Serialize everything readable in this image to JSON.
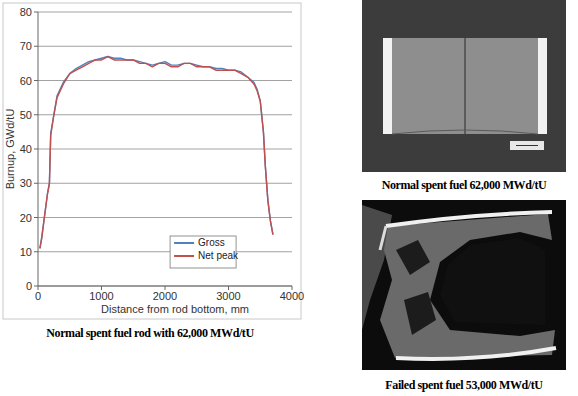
{
  "chart_data": {
    "type": "line",
    "x_label": "Distance from rod bottom, mm",
    "y_label": "Burnup, GWd/tU",
    "caption": "Normal spent fuel rod with 62,000 MWd/tU",
    "x": [
      30,
      60,
      100,
      150,
      180,
      200,
      250,
      300,
      400,
      500,
      600,
      700,
      800,
      900,
      1000,
      1100,
      1200,
      1300,
      1400,
      1500,
      1600,
      1700,
      1800,
      1900,
      2000,
      2100,
      2200,
      2300,
      2400,
      2500,
      2600,
      2700,
      2800,
      2900,
      3000,
      3100,
      3200,
      3300,
      3400,
      3450,
      3500,
      3550,
      3580,
      3620,
      3660,
      3700
    ],
    "series": [
      {
        "name": "Gross",
        "color": "#4f81bd",
        "values": [
          11,
          14.5,
          20,
          27,
          30,
          44.5,
          50,
          55.5,
          59.5,
          62,
          63.5,
          64.5,
          65.5,
          66,
          66.5,
          67,
          66.5,
          66.5,
          66,
          66,
          65.5,
          65,
          64.5,
          65,
          65.5,
          64.5,
          64.5,
          65,
          65,
          64.5,
          64,
          64,
          63.5,
          63.5,
          63,
          63,
          62.5,
          61,
          59.5,
          57.5,
          54,
          45,
          35,
          25,
          19,
          15
        ]
      },
      {
        "name": "Net peak",
        "color": "#c0504d",
        "values": [
          11,
          14,
          20,
          27,
          30,
          44,
          50,
          55,
          59,
          62,
          63,
          64,
          65,
          66,
          66,
          67,
          66,
          66,
          66,
          66,
          65,
          65,
          64,
          65,
          65,
          64,
          64,
          65,
          65,
          64,
          64,
          64,
          63,
          63,
          63,
          63,
          62,
          61,
          59,
          57,
          54,
          45,
          35,
          25,
          19,
          15
        ]
      }
    ],
    "xlim": [
      0,
      4000
    ],
    "xticks": [
      0,
      1000,
      2000,
      3000,
      4000
    ],
    "ylim": [
      0,
      80
    ],
    "yticks": [
      0,
      10,
      20,
      30,
      40,
      50,
      60,
      70,
      80
    ],
    "grid": true,
    "legend": "lower center"
  },
  "photos": [
    {
      "caption": "Normal spent fuel 62,000 MWd/tU"
    },
    {
      "caption": "Failed spent fuel 53,000 MWd/tU"
    }
  ]
}
